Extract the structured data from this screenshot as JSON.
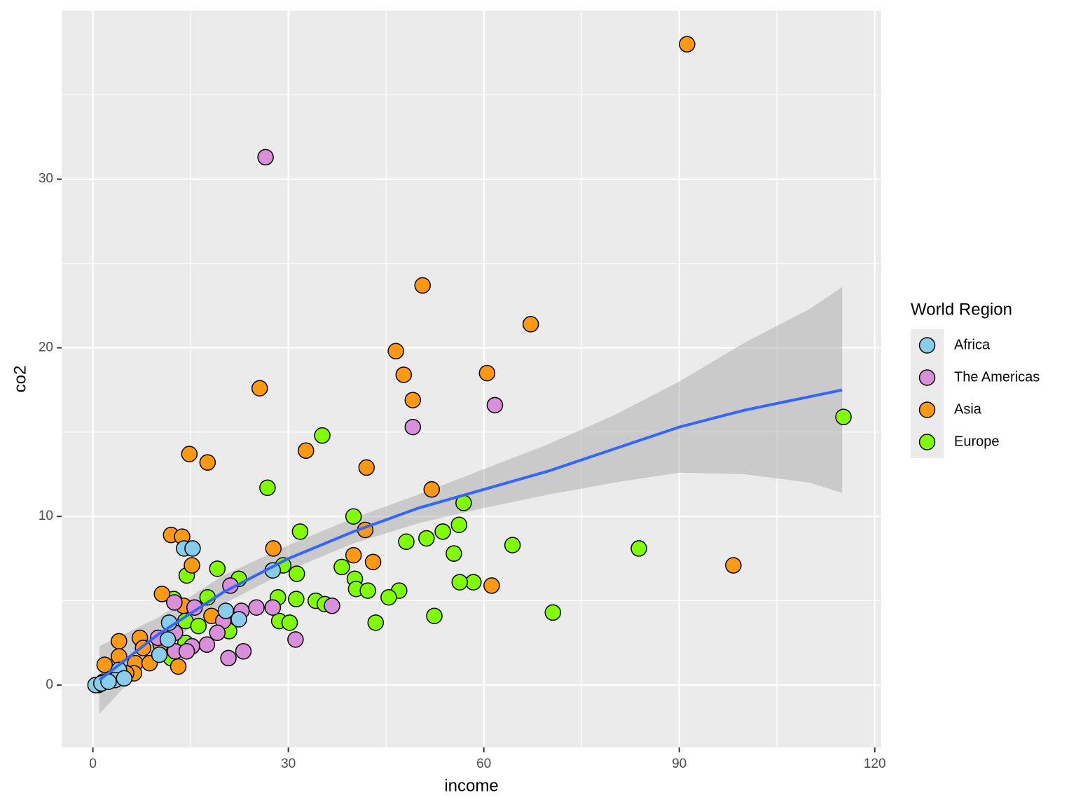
{
  "chart_data": {
    "type": "scatter",
    "x_label": "income",
    "y_label": "co2",
    "legend_title": "World Region",
    "legend_position": "right",
    "grid": true,
    "xlim": [
      -4.8,
      121
    ],
    "ylim": [
      -3.7,
      40
    ],
    "xticks": [
      0,
      30,
      60,
      90,
      120
    ],
    "yticks": [
      0,
      10,
      20,
      30
    ],
    "series": [
      {
        "name": "Africa",
        "color": "#87CEEB",
        "x": [
          14.0,
          15.3,
          27.6,
          20.4,
          22.4,
          11.7,
          11.5,
          10.2,
          4.0,
          3.4,
          4.8,
          1.6,
          0.8,
          0.4,
          1.3,
          2.4
        ],
        "values": [
          8.1,
          8.1,
          6.8,
          4.4,
          3.9,
          3.7,
          2.7,
          1.8,
          0.9,
          0.3,
          0.4,
          0.2,
          0.0,
          0.0,
          0.1,
          0.2
        ]
      },
      {
        "name": "The Americas",
        "color": "#DA8FDA",
        "x": [
          26.5,
          61.7,
          49.1,
          21.1,
          12.5,
          15.6,
          22.8,
          25.1,
          27.6,
          36.7,
          20.0,
          10.0,
          12.6,
          19.1,
          17.5,
          15.2,
          12.6,
          14.4,
          20.8,
          23.1,
          31.1
        ],
        "values": [
          31.3,
          16.6,
          15.3,
          5.9,
          4.9,
          4.6,
          4.4,
          4.6,
          4.6,
          4.7,
          3.8,
          2.8,
          3.1,
          3.1,
          2.4,
          2.3,
          2.0,
          2.0,
          1.6,
          2.0,
          2.7
        ]
      },
      {
        "name": "Asia",
        "color": "#FF9912",
        "x": [
          91.2,
          50.6,
          67.2,
          46.5,
          60.5,
          47.7,
          25.6,
          49.1,
          14.8,
          17.6,
          32.7,
          42.0,
          52.0,
          12.0,
          13.7,
          41.8,
          27.7,
          40.0,
          43.0,
          15.2,
          98.3,
          61.2,
          10.6,
          13.9,
          18.2,
          7.2,
          4.0,
          7.7,
          10.4,
          4.0,
          1.8,
          6.5,
          8.7,
          13.1,
          6.3,
          2.9,
          5.1
        ],
        "values": [
          38.0,
          23.7,
          21.4,
          19.8,
          18.5,
          18.4,
          17.6,
          16.9,
          13.7,
          13.2,
          13.9,
          12.9,
          11.6,
          8.9,
          8.8,
          9.2,
          8.1,
          7.7,
          7.3,
          7.1,
          7.1,
          5.9,
          5.4,
          4.7,
          4.1,
          2.8,
          2.6,
          2.2,
          2.4,
          1.7,
          1.2,
          1.3,
          1.3,
          1.1,
          0.7,
          0.4,
          0.7
        ]
      },
      {
        "name": "Europe",
        "color": "#7FFF00",
        "x": [
          115.2,
          35.2,
          26.8,
          56.9,
          40.0,
          56.2,
          53.7,
          31.8,
          48.1,
          51.2,
          64.4,
          83.8,
          55.4,
          38.2,
          29.2,
          19.1,
          31.3,
          14.4,
          22.4,
          40.2,
          58.4,
          56.3,
          40.4,
          42.2,
          47.0,
          45.4,
          17.6,
          28.4,
          31.2,
          34.2,
          35.6,
          12.4,
          70.6,
          52.4,
          14.2,
          28.6,
          30.2,
          43.4,
          16.2,
          20.9,
          14.2,
          12.0
        ],
        "values": [
          15.9,
          14.8,
          11.7,
          10.8,
          10.0,
          9.5,
          9.1,
          9.1,
          8.5,
          8.7,
          8.3,
          8.1,
          7.8,
          7.0,
          7.1,
          6.9,
          6.6,
          6.5,
          6.3,
          6.3,
          6.1,
          6.1,
          5.7,
          5.6,
          5.6,
          5.2,
          5.2,
          5.2,
          5.1,
          5.0,
          4.8,
          5.1,
          4.3,
          4.1,
          3.8,
          3.8,
          3.7,
          3.7,
          3.5,
          3.2,
          2.5,
          1.6
        ]
      }
    ],
    "smooth": {
      "color": "#3366FF",
      "band_color": "#999999",
      "x": [
        1,
        10,
        20,
        30,
        40,
        50,
        60,
        70,
        80,
        90,
        100,
        110,
        115
      ],
      "y": [
        0.3,
        3.0,
        5.5,
        7.5,
        9.1,
        10.5,
        11.6,
        12.7,
        14.0,
        15.3,
        16.3,
        17.1,
        17.5
      ],
      "ymin": [
        -1.7,
        2.0,
        4.8,
        6.8,
        8.4,
        9.6,
        10.5,
        11.3,
        12.0,
        12.6,
        12.5,
        12.0,
        11.4
      ],
      "ymax": [
        2.3,
        4.0,
        6.5,
        8.3,
        9.9,
        11.3,
        12.8,
        14.3,
        16.0,
        18.0,
        20.3,
        22.3,
        23.6
      ]
    }
  }
}
